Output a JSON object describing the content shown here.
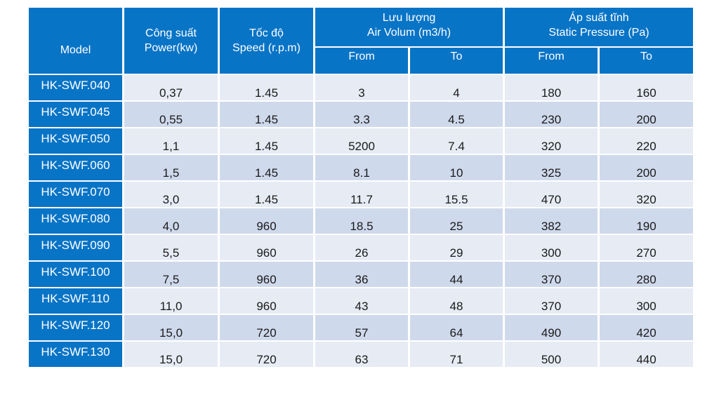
{
  "header": {
    "model": "Model",
    "power": [
      "Công suất",
      "Power(kw)"
    ],
    "speed": [
      "Tốc độ",
      "Speed (r.p.m)"
    ],
    "airflow": [
      "Lưu lượng",
      "Air Volum (m3/h)"
    ],
    "pressure": [
      "Áp suất tĩnh",
      "Static Pressure (Pa)"
    ],
    "from": "From",
    "to": "To"
  },
  "rows": [
    {
      "model": "HK-SWF.040",
      "power": "0,37",
      "speed": "1.45",
      "air_from": "3",
      "air_to": "4",
      "p_from": "180",
      "p_to": "160"
    },
    {
      "model": "HK-SWF.045",
      "power": "0,55",
      "speed": "1.45",
      "air_from": "3.3",
      "air_to": "4.5",
      "p_from": "230",
      "p_to": "200"
    },
    {
      "model": "HK-SWF.050",
      "power": "1,1",
      "speed": "1.45",
      "air_from": "5200",
      "air_to": "7.4",
      "p_from": "320",
      "p_to": "220"
    },
    {
      "model": "HK-SWF.060",
      "power": "1,5",
      "speed": "1.45",
      "air_from": "8.1",
      "air_to": "10",
      "p_from": "325",
      "p_to": "200"
    },
    {
      "model": "HK-SWF.070",
      "power": "3,0",
      "speed": "1.45",
      "air_from": "11.7",
      "air_to": "15.5",
      "p_from": "470",
      "p_to": "320"
    },
    {
      "model": "HK-SWF.080",
      "power": "4,0",
      "speed": "960",
      "air_from": "18.5",
      "air_to": "25",
      "p_from": "382",
      "p_to": "190"
    },
    {
      "model": "HK-SWF.090",
      "power": "5,5",
      "speed": "960",
      "air_from": "26",
      "air_to": "29",
      "p_from": "300",
      "p_to": "270"
    },
    {
      "model": "HK-SWF.100",
      "power": "7,5",
      "speed": "960",
      "air_from": "36",
      "air_to": "44",
      "p_from": "370",
      "p_to": "280"
    },
    {
      "model": "HK-SWF.110",
      "power": "11,0",
      "speed": "960",
      "air_from": "43",
      "air_to": "48",
      "p_from": "370",
      "p_to": "300"
    },
    {
      "model": "HK-SWF.120",
      "power": "15,0",
      "speed": "720",
      "air_from": "57",
      "air_to": "64",
      "p_from": "490",
      "p_to": "420"
    },
    {
      "model": "HK-SWF.130",
      "power": "15,0",
      "speed": "720",
      "air_from": "63",
      "air_to": "71",
      "p_from": "500",
      "p_to": "440"
    }
  ],
  "colors": {
    "header_bg": "#0874c6",
    "row_light": "#e6ebf4",
    "row_dark": "#cfd9ec",
    "header_text": "#ffffff"
  }
}
